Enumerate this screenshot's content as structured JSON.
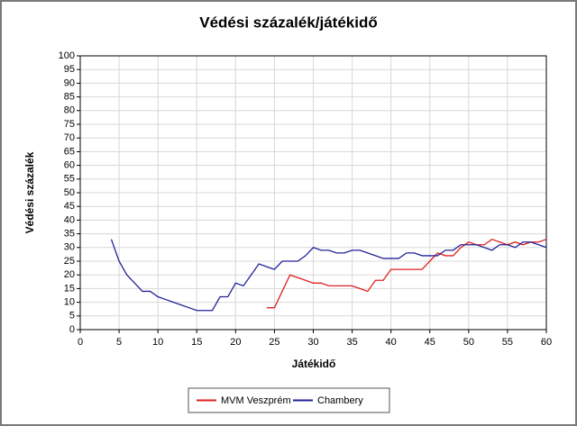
{
  "chart_data": {
    "type": "line",
    "title": "Védési százalék/játékidő",
    "x_label": "Játékidő",
    "y_label": "Védési százalék",
    "x": [
      4,
      5,
      6,
      7,
      8,
      9,
      10,
      11,
      12,
      13,
      14,
      15,
      16,
      17,
      18,
      19,
      20,
      21,
      22,
      23,
      24,
      25,
      26,
      27,
      28,
      29,
      30,
      31,
      32,
      33,
      34,
      35,
      36,
      37,
      38,
      39,
      40,
      41,
      42,
      43,
      44,
      45,
      46,
      47,
      48,
      49,
      50,
      51,
      52,
      53,
      54,
      55,
      56,
      57,
      58,
      59,
      60
    ],
    "series": [
      {
        "name": "MVM Veszprém",
        "color": "#e02020",
        "values": [
          null,
          null,
          null,
          null,
          null,
          null,
          null,
          null,
          null,
          null,
          null,
          null,
          null,
          null,
          null,
          null,
          null,
          null,
          null,
          null,
          8,
          8,
          14,
          20,
          19,
          18,
          17,
          17,
          16,
          16,
          16,
          16,
          15,
          14,
          18,
          18,
          22,
          22,
          22,
          22,
          22,
          25,
          28,
          27,
          27,
          30,
          32,
          31,
          31,
          33,
          32,
          31,
          32,
          31,
          32,
          32,
          33
        ]
      },
      {
        "name": "Chambery",
        "color": "#22229a",
        "values": [
          33,
          25,
          20,
          17,
          14,
          14,
          12,
          11,
          10,
          9,
          8,
          7,
          7,
          7,
          12,
          12,
          17,
          16,
          20,
          24,
          23,
          22,
          25,
          25,
          25,
          27,
          30,
          29,
          29,
          28,
          28,
          29,
          29,
          28,
          27,
          26,
          26,
          26,
          28,
          28,
          27,
          27,
          27,
          29,
          29,
          31,
          31,
          31,
          30,
          29,
          31,
          31,
          30,
          32,
          32,
          31,
          30
        ]
      }
    ],
    "xlim": [
      0,
      60
    ],
    "xticks": [
      0,
      5,
      10,
      15,
      20,
      25,
      30,
      35,
      40,
      45,
      50,
      55,
      60
    ],
    "ylim": [
      0,
      100
    ],
    "yticks": [
      0,
      5,
      10,
      15,
      20,
      25,
      30,
      35,
      40,
      45,
      50,
      55,
      60,
      65,
      70,
      75,
      80,
      85,
      90,
      95,
      100
    ],
    "grid": true
  }
}
